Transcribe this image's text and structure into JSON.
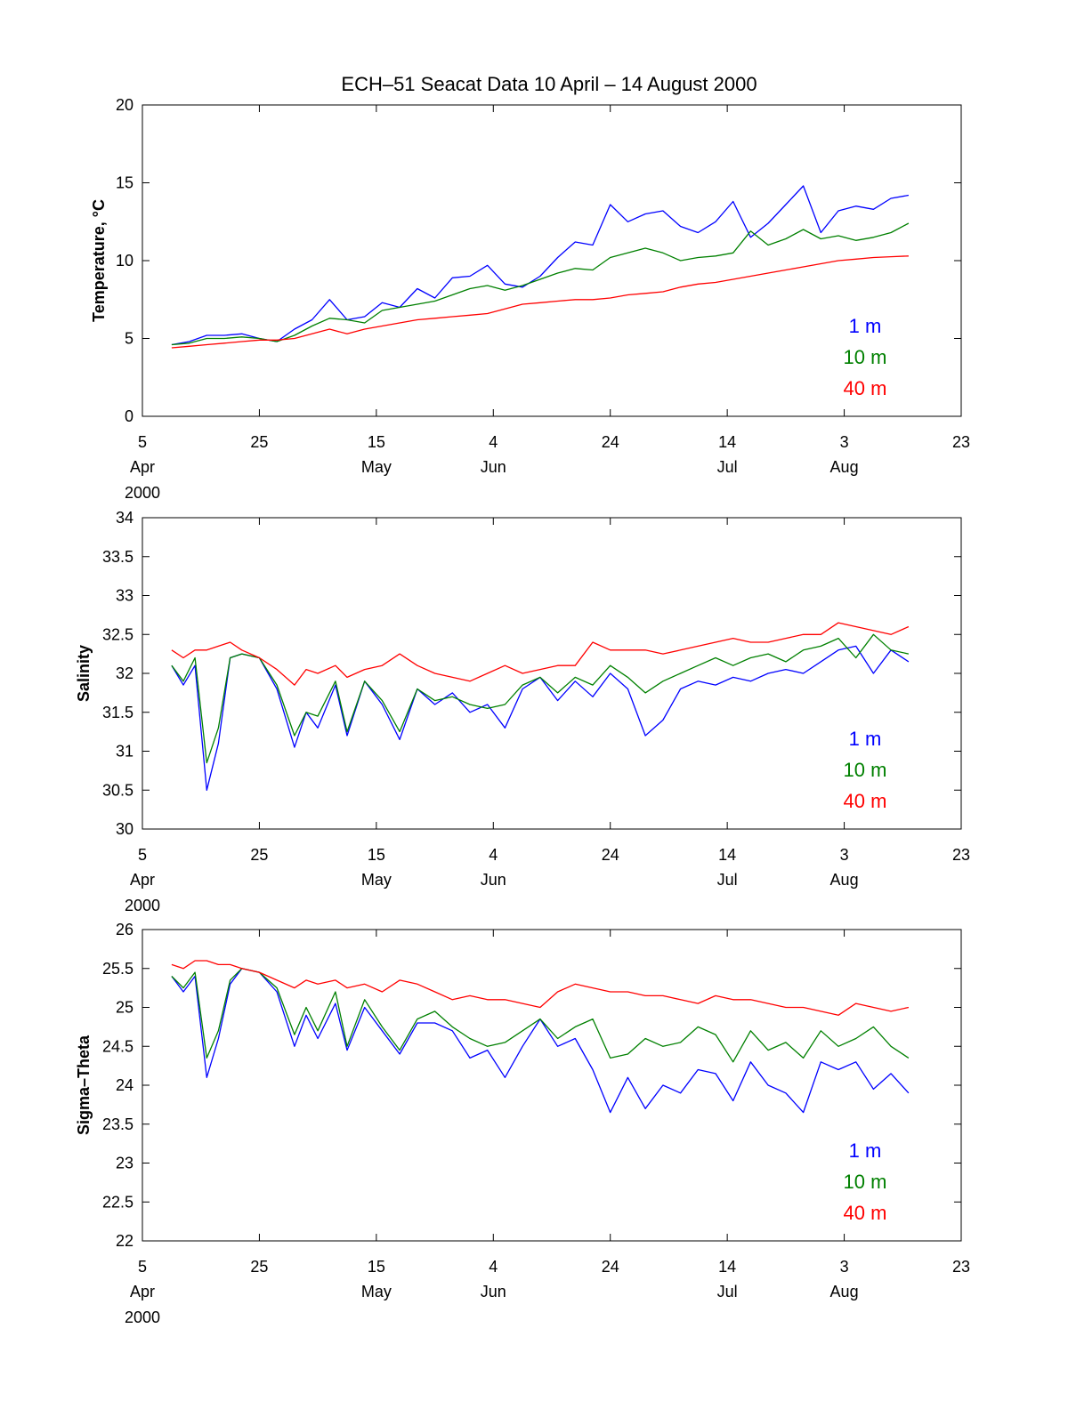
{
  "title": "ECH–51   Seacat Data   10 April – 14 August 2000",
  "colors": {
    "1 m": "#0000ff",
    "10 m": "#008000",
    "40 m": "#ff0000"
  },
  "chart_data": [
    {
      "type": "line",
      "ylabel": "Temperature, °C",
      "ylim": [
        0,
        20
      ],
      "yticks": [
        "0",
        "5",
        "10",
        "15",
        "20"
      ],
      "xlim": [
        "2000-04-05",
        "2000-08-23"
      ],
      "xticks": [
        {
          "day": "5",
          "month": "Apr",
          "year": "2000"
        },
        {
          "day": "25",
          "month": "",
          "year": ""
        },
        {
          "day": "15",
          "month": "May",
          "year": ""
        },
        {
          "day": "4",
          "month": "Jun",
          "year": ""
        },
        {
          "day": "24",
          "month": "",
          "year": ""
        },
        {
          "day": "14",
          "month": "Jul",
          "year": ""
        },
        {
          "day": "3",
          "month": "Aug",
          "year": ""
        },
        {
          "day": "23",
          "month": "",
          "year": ""
        }
      ],
      "xtick_dates": [
        "2000-04-05",
        "2000-04-25",
        "2000-05-15",
        "2000-06-04",
        "2000-06-24",
        "2000-07-14",
        "2000-08-03",
        "2000-08-23"
      ],
      "legend_position": "bottom-right",
      "x": [
        "2000-04-10",
        "2000-04-13",
        "2000-04-16",
        "2000-04-19",
        "2000-04-22",
        "2000-04-25",
        "2000-04-28",
        "2000-05-01",
        "2000-05-04",
        "2000-05-07",
        "2000-05-10",
        "2000-05-13",
        "2000-05-16",
        "2000-05-19",
        "2000-05-22",
        "2000-05-25",
        "2000-05-28",
        "2000-05-31",
        "2000-06-03",
        "2000-06-06",
        "2000-06-09",
        "2000-06-12",
        "2000-06-15",
        "2000-06-18",
        "2000-06-21",
        "2000-06-24",
        "2000-06-27",
        "2000-06-30",
        "2000-07-03",
        "2000-07-06",
        "2000-07-09",
        "2000-07-12",
        "2000-07-15",
        "2000-07-18",
        "2000-07-21",
        "2000-07-24",
        "2000-07-27",
        "2000-07-30",
        "2000-08-02",
        "2000-08-05",
        "2000-08-08",
        "2000-08-11",
        "2000-08-14"
      ],
      "series": [
        {
          "name": "1 m",
          "values": [
            4.6,
            4.8,
            5.2,
            5.2,
            5.3,
            5.0,
            4.8,
            5.6,
            6.2,
            7.5,
            6.2,
            6.4,
            7.3,
            7.0,
            8.2,
            7.6,
            8.9,
            9.0,
            9.7,
            8.5,
            8.3,
            9.0,
            10.2,
            11.2,
            11.0,
            13.6,
            12.5,
            13.0,
            13.2,
            12.2,
            11.8,
            12.5,
            13.8,
            11.5,
            12.4,
            13.6,
            14.8,
            11.8,
            13.2,
            13.5,
            13.3,
            14.0,
            14.2
          ]
        },
        {
          "name": "10 m",
          "values": [
            4.6,
            4.7,
            5.0,
            5.0,
            5.1,
            5.0,
            4.8,
            5.2,
            5.8,
            6.3,
            6.2,
            6.0,
            6.8,
            7.0,
            7.2,
            7.4,
            7.8,
            8.2,
            8.4,
            8.1,
            8.4,
            8.8,
            9.2,
            9.5,
            9.4,
            10.2,
            10.5,
            10.8,
            10.5,
            10.0,
            10.2,
            10.3,
            10.5,
            11.9,
            11.0,
            11.4,
            12.0,
            11.4,
            11.6,
            11.3,
            11.5,
            11.8,
            12.4
          ]
        },
        {
          "name": "40 m",
          "values": [
            4.4,
            4.5,
            4.6,
            4.7,
            4.8,
            4.9,
            4.9,
            5.0,
            5.3,
            5.6,
            5.3,
            5.6,
            5.8,
            6.0,
            6.2,
            6.3,
            6.4,
            6.5,
            6.6,
            6.9,
            7.2,
            7.3,
            7.4,
            7.5,
            7.5,
            7.6,
            7.8,
            7.9,
            8.0,
            8.3,
            8.5,
            8.6,
            8.8,
            9.0,
            9.2,
            9.4,
            9.6,
            9.8,
            10.0,
            10.1,
            10.2,
            10.25,
            10.3
          ]
        }
      ]
    },
    {
      "type": "line",
      "ylabel": "Salinity",
      "ylim": [
        30,
        34
      ],
      "yticks": [
        "30",
        "30.5",
        "31",
        "31.5",
        "32",
        "32.5",
        "33",
        "33.5",
        "34"
      ],
      "xlim": [
        "2000-04-05",
        "2000-08-23"
      ],
      "xticks": [
        {
          "day": "5",
          "month": "Apr",
          "year": "2000"
        },
        {
          "day": "25",
          "month": "",
          "year": ""
        },
        {
          "day": "15",
          "month": "May",
          "year": ""
        },
        {
          "day": "4",
          "month": "Jun",
          "year": ""
        },
        {
          "day": "24",
          "month": "",
          "year": ""
        },
        {
          "day": "14",
          "month": "Jul",
          "year": ""
        },
        {
          "day": "3",
          "month": "Aug",
          "year": ""
        },
        {
          "day": "23",
          "month": "",
          "year": ""
        }
      ],
      "xtick_dates": [
        "2000-04-05",
        "2000-04-25",
        "2000-05-15",
        "2000-06-04",
        "2000-06-24",
        "2000-07-14",
        "2000-08-03",
        "2000-08-23"
      ],
      "legend_position": "bottom-right",
      "x": [
        "2000-04-10",
        "2000-04-12",
        "2000-04-14",
        "2000-04-16",
        "2000-04-18",
        "2000-04-20",
        "2000-04-22",
        "2000-04-25",
        "2000-04-28",
        "2000-05-01",
        "2000-05-03",
        "2000-05-05",
        "2000-05-08",
        "2000-05-10",
        "2000-05-13",
        "2000-05-16",
        "2000-05-19",
        "2000-05-22",
        "2000-05-25",
        "2000-05-28",
        "2000-05-31",
        "2000-06-03",
        "2000-06-06",
        "2000-06-09",
        "2000-06-12",
        "2000-06-15",
        "2000-06-18",
        "2000-06-21",
        "2000-06-24",
        "2000-06-27",
        "2000-06-30",
        "2000-07-03",
        "2000-07-06",
        "2000-07-09",
        "2000-07-12",
        "2000-07-15",
        "2000-07-18",
        "2000-07-21",
        "2000-07-24",
        "2000-07-27",
        "2000-07-30",
        "2000-08-02",
        "2000-08-05",
        "2000-08-08",
        "2000-08-11",
        "2000-08-14"
      ],
      "series": [
        {
          "name": "1 m",
          "values": [
            32.1,
            31.85,
            32.1,
            30.5,
            31.1,
            32.2,
            32.25,
            32.2,
            31.8,
            31.05,
            31.5,
            31.3,
            31.85,
            31.2,
            31.9,
            31.6,
            31.15,
            31.8,
            31.6,
            31.75,
            31.5,
            31.6,
            31.3,
            31.8,
            31.95,
            31.65,
            31.9,
            31.7,
            32.0,
            31.8,
            31.2,
            31.4,
            31.8,
            31.9,
            31.85,
            31.95,
            31.9,
            32.0,
            32.05,
            32.0,
            32.15,
            32.3,
            32.35,
            32.0,
            32.3,
            32.15
          ]
        },
        {
          "name": "10 m",
          "values": [
            32.1,
            31.9,
            32.2,
            30.85,
            31.3,
            32.2,
            32.25,
            32.2,
            31.85,
            31.2,
            31.5,
            31.45,
            31.9,
            31.25,
            31.9,
            31.65,
            31.25,
            31.8,
            31.65,
            31.7,
            31.6,
            31.55,
            31.6,
            31.85,
            31.95,
            31.75,
            31.95,
            31.85,
            32.1,
            31.95,
            31.75,
            31.9,
            32.0,
            32.1,
            32.2,
            32.1,
            32.2,
            32.25,
            32.15,
            32.3,
            32.35,
            32.45,
            32.2,
            32.5,
            32.3,
            32.25
          ]
        },
        {
          "name": "40 m",
          "values": [
            32.3,
            32.2,
            32.3,
            32.3,
            32.35,
            32.4,
            32.3,
            32.2,
            32.05,
            31.85,
            32.05,
            32.0,
            32.1,
            31.95,
            32.05,
            32.1,
            32.25,
            32.1,
            32.0,
            31.95,
            31.9,
            32.0,
            32.1,
            32.0,
            32.05,
            32.1,
            32.1,
            32.4,
            32.3,
            32.3,
            32.3,
            32.25,
            32.3,
            32.35,
            32.4,
            32.45,
            32.4,
            32.4,
            32.45,
            32.5,
            32.5,
            32.65,
            32.6,
            32.55,
            32.5,
            32.6
          ]
        }
      ]
    },
    {
      "type": "line",
      "ylabel": "Sigma–Theta",
      "ylim": [
        22,
        26
      ],
      "yticks": [
        "22",
        "22.5",
        "23",
        "23.5",
        "24",
        "24.5",
        "25",
        "25.5",
        "26"
      ],
      "xlim": [
        "2000-04-05",
        "2000-08-23"
      ],
      "xticks": [
        {
          "day": "5",
          "month": "Apr",
          "year": "2000"
        },
        {
          "day": "25",
          "month": "",
          "year": ""
        },
        {
          "day": "15",
          "month": "May",
          "year": ""
        },
        {
          "day": "4",
          "month": "Jun",
          "year": ""
        },
        {
          "day": "24",
          "month": "",
          "year": ""
        },
        {
          "day": "14",
          "month": "Jul",
          "year": ""
        },
        {
          "day": "3",
          "month": "Aug",
          "year": ""
        },
        {
          "day": "23",
          "month": "",
          "year": ""
        }
      ],
      "xtick_dates": [
        "2000-04-05",
        "2000-04-25",
        "2000-05-15",
        "2000-06-04",
        "2000-06-24",
        "2000-07-14",
        "2000-08-03",
        "2000-08-23"
      ],
      "legend_position": "bottom-right",
      "x": [
        "2000-04-10",
        "2000-04-12",
        "2000-04-14",
        "2000-04-16",
        "2000-04-18",
        "2000-04-20",
        "2000-04-22",
        "2000-04-25",
        "2000-04-28",
        "2000-05-01",
        "2000-05-03",
        "2000-05-05",
        "2000-05-08",
        "2000-05-10",
        "2000-05-13",
        "2000-05-16",
        "2000-05-19",
        "2000-05-22",
        "2000-05-25",
        "2000-05-28",
        "2000-05-31",
        "2000-06-03",
        "2000-06-06",
        "2000-06-09",
        "2000-06-12",
        "2000-06-15",
        "2000-06-18",
        "2000-06-21",
        "2000-06-24",
        "2000-06-27",
        "2000-06-30",
        "2000-07-03",
        "2000-07-06",
        "2000-07-09",
        "2000-07-12",
        "2000-07-15",
        "2000-07-18",
        "2000-07-21",
        "2000-07-24",
        "2000-07-27",
        "2000-07-30",
        "2000-08-02",
        "2000-08-05",
        "2000-08-08",
        "2000-08-11",
        "2000-08-14"
      ],
      "series": [
        {
          "name": "1 m",
          "values": [
            25.4,
            25.2,
            25.4,
            24.1,
            24.6,
            25.3,
            25.5,
            25.45,
            25.2,
            24.5,
            24.9,
            24.6,
            25.05,
            24.45,
            25.0,
            24.7,
            24.4,
            24.8,
            24.8,
            24.7,
            24.35,
            24.45,
            24.1,
            24.5,
            24.85,
            24.5,
            24.6,
            24.2,
            23.65,
            24.1,
            23.7,
            24.0,
            23.9,
            24.2,
            24.15,
            23.8,
            24.3,
            24.0,
            23.9,
            23.65,
            24.3,
            24.2,
            24.3,
            23.95,
            24.15,
            23.9
          ]
        },
        {
          "name": "10 m",
          "values": [
            25.4,
            25.25,
            25.45,
            24.35,
            24.7,
            25.35,
            25.5,
            25.45,
            25.25,
            24.65,
            25.0,
            24.7,
            25.2,
            24.5,
            25.1,
            24.75,
            24.45,
            24.85,
            24.95,
            24.75,
            24.6,
            24.5,
            24.55,
            24.7,
            24.85,
            24.6,
            24.75,
            24.85,
            24.35,
            24.4,
            24.6,
            24.5,
            24.55,
            24.75,
            24.65,
            24.3,
            24.7,
            24.45,
            24.55,
            24.35,
            24.7,
            24.5,
            24.6,
            24.75,
            24.5,
            24.35
          ]
        },
        {
          "name": "40 m",
          "values": [
            25.55,
            25.5,
            25.6,
            25.6,
            25.55,
            25.55,
            25.5,
            25.45,
            25.35,
            25.25,
            25.35,
            25.3,
            25.35,
            25.25,
            25.3,
            25.2,
            25.35,
            25.3,
            25.2,
            25.1,
            25.15,
            25.1,
            25.1,
            25.05,
            25.0,
            25.2,
            25.3,
            25.25,
            25.2,
            25.2,
            25.15,
            25.15,
            25.1,
            25.05,
            25.15,
            25.1,
            25.1,
            25.05,
            25.0,
            25.0,
            24.95,
            24.9,
            25.05,
            25.0,
            24.95,
            25.0
          ]
        }
      ]
    }
  ]
}
